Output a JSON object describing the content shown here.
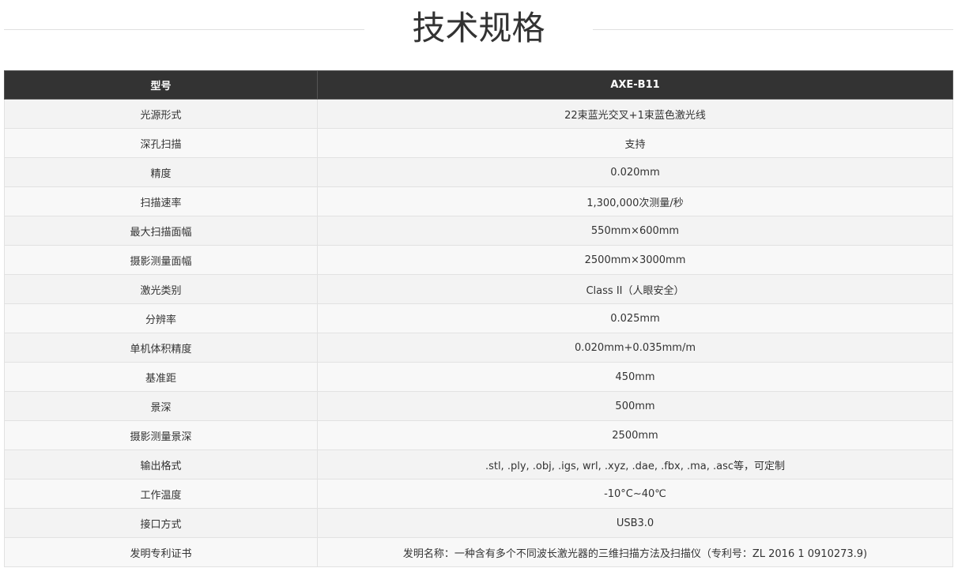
{
  "page_title": "技术规格",
  "table": {
    "header": {
      "key": "型号",
      "value": "AXE-B11"
    },
    "rows": [
      {
        "key": "光源形式",
        "value": "22束蓝光交叉+1束蓝色激光线"
      },
      {
        "key": "深孔扫描",
        "value": "支持"
      },
      {
        "key": "精度",
        "value": "0.020mm"
      },
      {
        "key": "扫描速率",
        "value": "1,300,000次测量/秒"
      },
      {
        "key": "最大扫描面幅",
        "value": "550mm×600mm"
      },
      {
        "key": "摄影测量面幅",
        "value": "2500mm×3000mm"
      },
      {
        "key": "激光类别",
        "value": "Class II（人眼安全）"
      },
      {
        "key": "分辨率",
        "value": "0.025mm"
      },
      {
        "key": "单机体积精度",
        "value": "0.020mm+0.035mm/m"
      },
      {
        "key": "基准距",
        "value": "450mm"
      },
      {
        "key": "景深",
        "value": "500mm"
      },
      {
        "key": "摄影测量景深",
        "value": "2500mm"
      },
      {
        "key": "输出格式",
        "value": ".stl, .ply, .obj, .igs, wrl, .xyz, .dae, .fbx, .ma, .asc等，可定制"
      },
      {
        "key": "工作温度",
        "value": "-10°C~40℃"
      },
      {
        "key": "接口方式",
        "value": "USB3.0"
      },
      {
        "key": "发明专利证书",
        "value": "发明名称：一种含有多个不同波长激光器的三维扫描方法及扫描仪（专利号：ZL 2016 1 0910273.9)"
      }
    ]
  }
}
